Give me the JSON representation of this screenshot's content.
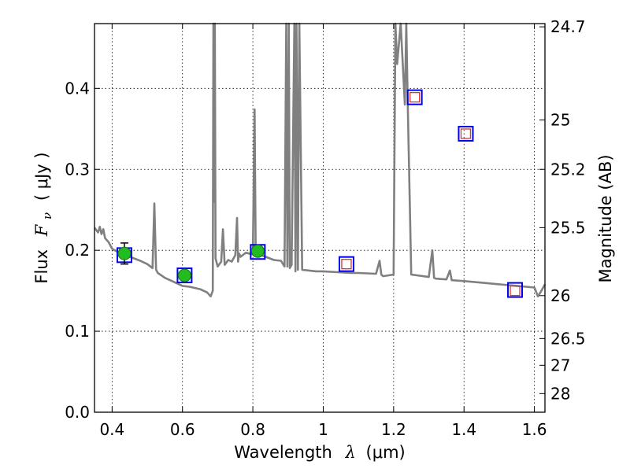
{
  "chart_data": {
    "type": "line",
    "xlabel_text": "Wavelength",
    "xlabel_symbol": "λ",
    "xlabel_unit": "(μm)",
    "ylabel_text": "Flux",
    "ylabel_symbol": "F",
    "ylabel_subscript": "ν",
    "ylabel_unit": "( μJy )",
    "y2label": "Magnitude (AB)",
    "xlim": [
      0.35,
      1.63
    ],
    "ylim": [
      0.0,
      0.48
    ],
    "grid": true,
    "x_ticks": [
      0.4,
      0.6,
      0.8,
      1.0,
      1.2,
      1.4,
      1.6
    ],
    "x_tick_labels": [
      "0.4",
      "0.6",
      "0.8",
      "1",
      "1.2",
      "1.4",
      "1.6"
    ],
    "y_ticks": [
      0.0,
      0.1,
      0.2,
      0.3,
      0.4
    ],
    "y_tick_labels": [
      "0.0",
      "0.1",
      "0.2",
      "0.3",
      "0.4"
    ],
    "y2_ticks": [
      {
        "label": "24.7",
        "flux": 0.476
      },
      {
        "label": "25",
        "flux": 0.361
      },
      {
        "label": "25.2",
        "flux": 0.3
      },
      {
        "label": "25.5",
        "flux": 0.228
      },
      {
        "label": "26",
        "flux": 0.144
      },
      {
        "label": "26.5",
        "flux": 0.091
      },
      {
        "label": "27",
        "flux": 0.058
      },
      {
        "label": "28",
        "flux": 0.023
      }
    ],
    "colors": {
      "model": "#808080",
      "detected_fill": "#22bb22",
      "model_box": "#0000ee",
      "upper_marker": "#dd3333"
    },
    "model_sed": {
      "x": [
        0.35,
        0.36,
        0.365,
        0.37,
        0.375,
        0.38,
        0.39,
        0.4,
        0.42,
        0.45,
        0.48,
        0.5,
        0.515,
        0.52,
        0.525,
        0.53,
        0.55,
        0.58,
        0.6,
        0.62,
        0.65,
        0.67,
        0.68,
        0.686,
        0.688,
        0.69,
        0.692,
        0.694,
        0.7,
        0.71,
        0.715,
        0.72,
        0.73,
        0.74,
        0.75,
        0.755,
        0.758,
        0.761,
        0.765,
        0.78,
        0.8,
        0.805,
        0.808,
        0.811,
        0.815,
        0.83,
        0.86,
        0.88,
        0.89,
        0.895,
        0.898,
        0.902,
        0.905,
        0.91,
        0.918,
        0.921,
        0.924,
        0.928,
        0.932,
        0.94,
        0.98,
        1.0,
        1.04,
        1.08,
        1.1,
        1.15,
        1.16,
        1.165,
        1.17,
        1.2,
        1.205,
        1.21,
        1.22,
        1.232,
        1.236,
        1.24,
        1.25,
        1.3,
        1.31,
        1.315,
        1.32,
        1.35,
        1.36,
        1.365,
        1.4,
        1.45,
        1.5,
        1.55,
        1.6,
        1.61,
        1.62,
        1.63
      ],
      "y": [
        0.228,
        0.222,
        0.229,
        0.22,
        0.226,
        0.215,
        0.21,
        0.202,
        0.197,
        0.192,
        0.187,
        0.183,
        0.178,
        0.258,
        0.176,
        0.172,
        0.166,
        0.16,
        0.156,
        0.155,
        0.152,
        0.148,
        0.143,
        0.15,
        0.5,
        0.26,
        0.5,
        0.19,
        0.18,
        0.186,
        0.226,
        0.182,
        0.188,
        0.186,
        0.194,
        0.24,
        0.186,
        0.196,
        0.192,
        0.197,
        0.195,
        0.374,
        0.195,
        0.197,
        0.195,
        0.193,
        0.188,
        0.187,
        0.18,
        0.5,
        0.18,
        0.5,
        0.178,
        0.182,
        0.5,
        0.174,
        0.5,
        0.176,
        0.5,
        0.176,
        0.174,
        0.174,
        0.173,
        0.172,
        0.172,
        0.171,
        0.187,
        0.17,
        0.168,
        0.17,
        0.5,
        0.43,
        0.5,
        0.38,
        0.5,
        0.385,
        0.17,
        0.167,
        0.2,
        0.166,
        0.165,
        0.164,
        0.175,
        0.163,
        0.162,
        0.16,
        0.158,
        0.156,
        0.154,
        0.143,
        0.15,
        0.158
      ]
    },
    "detected_points": [
      {
        "x": 0.435,
        "y": 0.196,
        "err": 0.013
      },
      {
        "x": 0.606,
        "y": 0.169,
        "err": 0.0
      },
      {
        "x": 0.814,
        "y": 0.199,
        "err": 0.0
      }
    ],
    "model_points": [
      {
        "x": 0.435,
        "y": 0.194
      },
      {
        "x": 0.606,
        "y": 0.169
      },
      {
        "x": 0.814,
        "y": 0.198
      },
      {
        "x": 1.066,
        "y": 0.183
      },
      {
        "x": 1.26,
        "y": 0.389
      },
      {
        "x": 1.405,
        "y": 0.344
      },
      {
        "x": 1.545,
        "y": 0.151
      }
    ],
    "upper_points": [
      {
        "x": 1.066,
        "y": 0.183
      },
      {
        "x": 1.26,
        "y": 0.389
      },
      {
        "x": 1.405,
        "y": 0.344
      },
      {
        "x": 1.545,
        "y": 0.15
      }
    ]
  }
}
